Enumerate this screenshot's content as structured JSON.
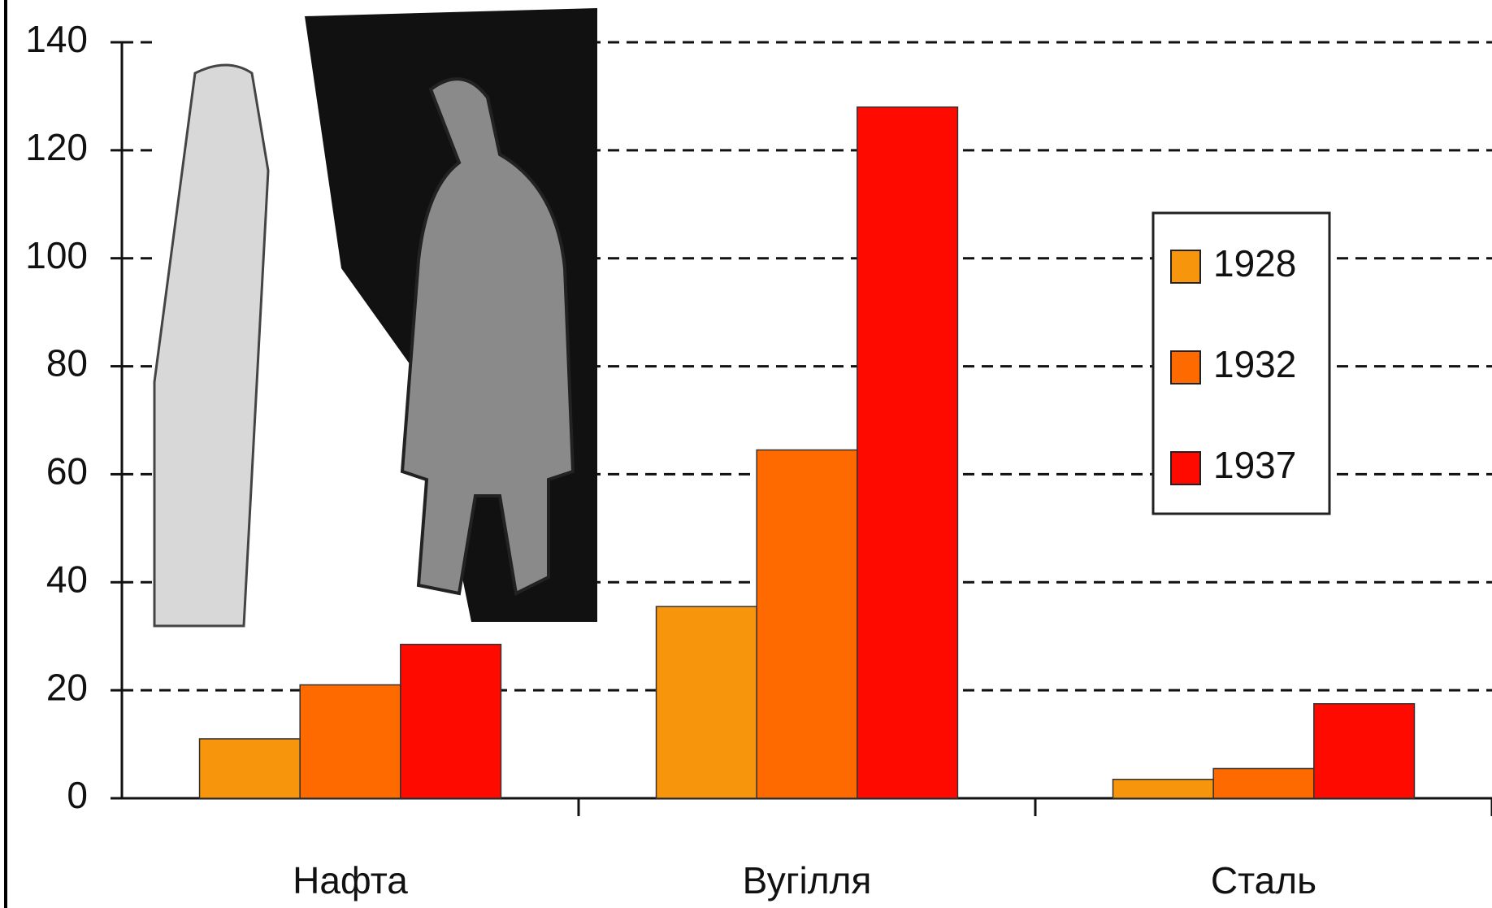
{
  "chart_data": {
    "type": "bar",
    "categories": [
      "Нафта",
      "Вугілля",
      "Сталь"
    ],
    "series": [
      {
        "name": "1928",
        "color": "#f7960c",
        "values": [
          11,
          35.5,
          3.5
        ]
      },
      {
        "name": "1932",
        "color": "#ff6a00",
        "values": [
          21,
          64.5,
          5.5
        ]
      },
      {
        "name": "1937",
        "color": "#ff0a00",
        "values": [
          28.5,
          128,
          17.5
        ]
      }
    ],
    "ylim": [
      0,
      140
    ],
    "yticks": [
      0,
      20,
      40,
      60,
      80,
      100,
      120,
      140
    ],
    "grid": true
  }
}
